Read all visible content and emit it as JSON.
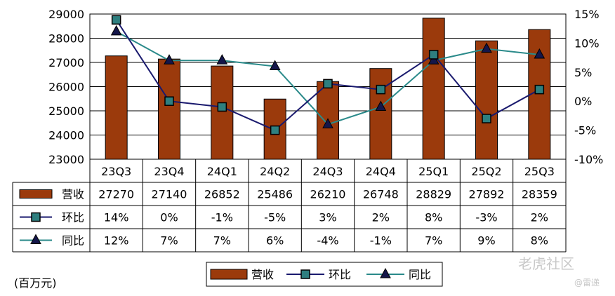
{
  "chart_data": {
    "type": "bar",
    "categories": [
      "23Q3",
      "23Q4",
      "24Q1",
      "24Q2",
      "24Q3",
      "24Q4",
      "25Q1",
      "25Q2",
      "25Q3"
    ],
    "series": [
      {
        "name": "营收",
        "type": "bar",
        "axis": "left",
        "values": [
          27270,
          27140,
          26852,
          25486,
          26210,
          26748,
          28829,
          27892,
          28359
        ],
        "labels": [
          "27270",
          "27140",
          "26852",
          "25486",
          "26210",
          "26748",
          "28829",
          "27892",
          "28359"
        ],
        "color": "#9b3a0c"
      },
      {
        "name": "环比",
        "type": "line",
        "axis": "right",
        "marker": "square",
        "values": [
          14,
          0,
          -1,
          -5,
          3,
          2,
          8,
          -3,
          2
        ],
        "labels": [
          "14%",
          "0%",
          "-1%",
          "-5%",
          "3%",
          "2%",
          "8%",
          "-3%",
          "2%"
        ],
        "color": "#1a1a6e",
        "marker_color": "#2e7f7f"
      },
      {
        "name": "同比",
        "type": "line",
        "axis": "right",
        "marker": "triangle",
        "values": [
          12,
          7,
          7,
          6,
          -4,
          -1,
          7,
          9,
          8
        ],
        "labels": [
          "12%",
          "7%",
          "7%",
          "6%",
          "-4%",
          "-1%",
          "7%",
          "9%",
          "8%"
        ],
        "color": "#2a8a8a",
        "marker_color": "#14164a"
      }
    ],
    "y_left": {
      "ylim": [
        23000,
        29000
      ],
      "ticks": [
        "29000",
        "28000",
        "27000",
        "26000",
        "25000",
        "24000",
        "23000"
      ]
    },
    "y_right": {
      "ylim": [
        -10,
        15
      ],
      "ticks": [
        "15%",
        "10%",
        "5%",
        "0%",
        "-5%",
        "-10%"
      ]
    },
    "grid": true,
    "legend_position": "bottom",
    "legend": [
      "营收",
      "环比",
      "同比"
    ]
  },
  "unit_label": "(百万元)",
  "watermark": "老虎社区",
  "watermark_sub": "@雷递"
}
